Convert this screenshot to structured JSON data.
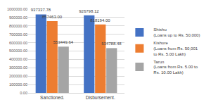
{
  "chart_data": {
    "type": "bar",
    "categories": [
      "Sanctioned.",
      "Disbursement."
    ],
    "series": [
      {
        "name": "Shishu (Loans up to Rs. 50,000)",
        "color": "#4472c4",
        "values": [
          937337.78,
          926798.12
        ],
        "value_labels": [
          "937337.78",
          "926798.12"
        ]
      },
      {
        "name": "Kishore (Loans from Rs. 50,001 to Rs. 5.00 Lakh)",
        "color": "#ed7d31",
        "values": [
          857463.0,
          818194.0
        ],
        "value_labels": [
          "857463.00",
          "818194.00"
        ]
      },
      {
        "name": "Tarun (Loans from Rs. 5.00 to Rs. 10.00 Lakh)",
        "color": "#a5a5a5",
        "values": [
          553449.64,
          534788.48
        ],
        "value_labels": [
          "553449.64",
          "534788.48"
        ]
      }
    ],
    "ylim": [
      0,
      1000000
    ],
    "yticks": [
      {
        "value": 0,
        "label": "0.00"
      },
      {
        "value": 100000,
        "label": "100000.00"
      },
      {
        "value": 200000,
        "label": "200000.00"
      },
      {
        "value": 300000,
        "label": "300000.00"
      },
      {
        "value": 400000,
        "label": "400000.00"
      },
      {
        "value": 500000,
        "label": "500000.00"
      },
      {
        "value": 600000,
        "label": "600000.00"
      },
      {
        "value": 700000,
        "label": "700000.00"
      },
      {
        "value": 800000,
        "label": "800000.00"
      },
      {
        "value": 900000,
        "label": "900000.00"
      },
      {
        "value": 1000000,
        "label": "1000000.00"
      }
    ],
    "grid": true,
    "legend": "right",
    "data_labels": true
  }
}
